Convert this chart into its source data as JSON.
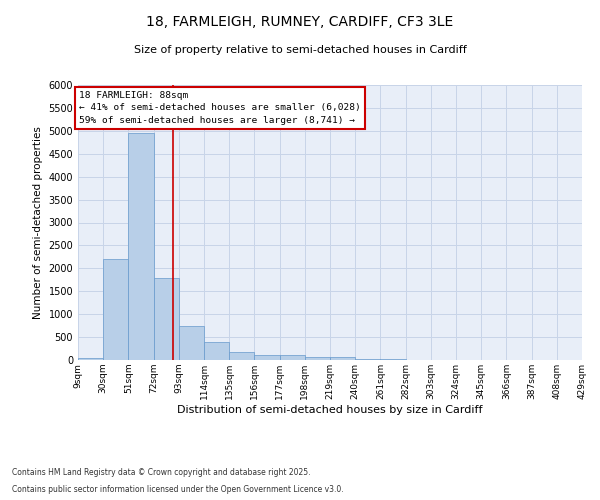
{
  "title1": "18, FARMLEIGH, RUMNEY, CARDIFF, CF3 3LE",
  "title2": "Size of property relative to semi-detached houses in Cardiff",
  "xlabel": "Distribution of semi-detached houses by size in Cardiff",
  "ylabel": "Number of semi-detached properties",
  "property_label": "18 FARMLEIGH: 88sqm",
  "smaller_text": "← 41% of semi-detached houses are smaller (6,028)",
  "larger_text": "59% of semi-detached houses are larger (8,741) →",
  "footer1": "Contains HM Land Registry data © Crown copyright and database right 2025.",
  "footer2": "Contains public sector information licensed under the Open Government Licence v3.0.",
  "bin_labels": [
    "9sqm",
    "30sqm",
    "51sqm",
    "72sqm",
    "93sqm",
    "114sqm",
    "135sqm",
    "156sqm",
    "177sqm",
    "198sqm",
    "219sqm",
    "240sqm",
    "261sqm",
    "282sqm",
    "303sqm",
    "324sqm",
    "345sqm",
    "366sqm",
    "387sqm",
    "408sqm",
    "429sqm"
  ],
  "bin_lefts": [
    9,
    30,
    51,
    72,
    93,
    114,
    135,
    156,
    177,
    198,
    219,
    240,
    261,
    282,
    303,
    324,
    345,
    366,
    387,
    408
  ],
  "bin_width": 21,
  "bar_heights": [
    50,
    2200,
    4950,
    1800,
    750,
    400,
    180,
    120,
    120,
    70,
    55,
    30,
    15,
    10,
    5,
    3,
    3,
    2,
    0,
    0
  ],
  "bar_color": "#b8cfe8",
  "bar_edge_color": "#6699cc",
  "vline_color": "#cc0000",
  "vline_x": 88,
  "annotation_box_edgecolor": "#cc0000",
  "ylim": [
    0,
    6000
  ],
  "yticks": [
    0,
    500,
    1000,
    1500,
    2000,
    2500,
    3000,
    3500,
    4000,
    4500,
    5000,
    5500,
    6000
  ],
  "grid_color": "#c8d4e8",
  "background_color": "#e8eef8",
  "fig_background": "#ffffff",
  "xlim_left": 9,
  "xlim_right": 429
}
